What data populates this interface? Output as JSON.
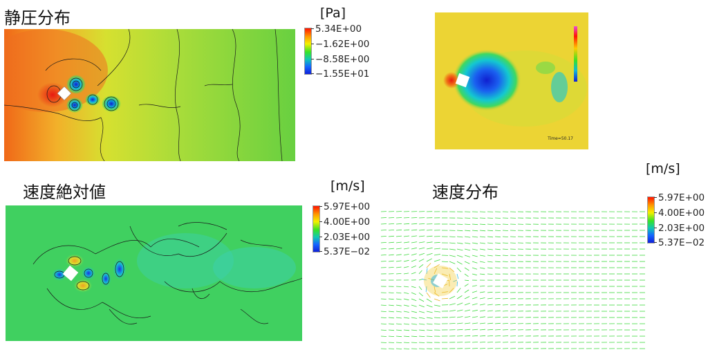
{
  "panels": {
    "pressure": {
      "title": "静圧分布",
      "unit": "[Pa]",
      "colorbar": [
        "5.34E+00",
        "−1.62E+00",
        "−8.58E+00",
        "−1.55E+01"
      ]
    },
    "speed_abs": {
      "title": "速度絶対値",
      "unit": "[m/s]",
      "colorbar": [
        "5.97E+00",
        "4.00E+00",
        "2.03E+00",
        "5.37E−02"
      ]
    },
    "velocity": {
      "title": "速度分布",
      "unit": "[m/s]",
      "colorbar": [
        "5.97E+00",
        "4.00E+00",
        "2.03E+00",
        "5.37E−02"
      ]
    },
    "inset": {
      "time_label": "Time=50.17"
    }
  },
  "colors": {
    "high": "#ff1400",
    "mid": "#36e228",
    "low": "#1020d8",
    "background": "#ffffff"
  }
}
